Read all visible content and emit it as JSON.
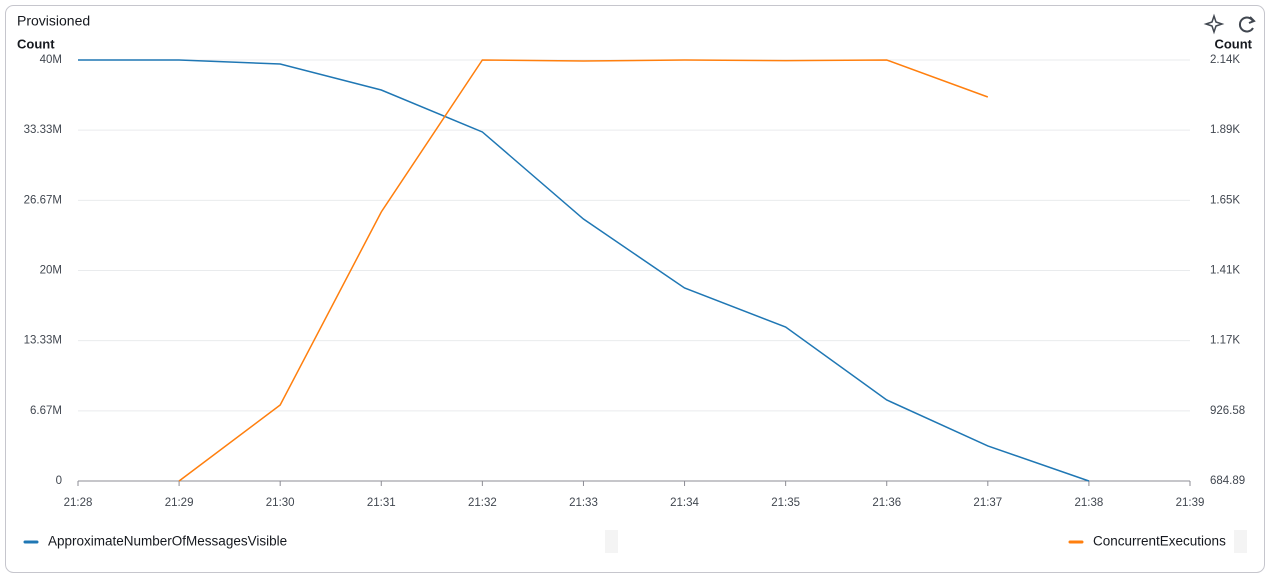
{
  "chart_data": {
    "type": "line",
    "title": "Provisioned",
    "y_label": "Count",
    "y2_label": "Count",
    "categories": [
      "21:28",
      "21:29",
      "21:30",
      "21:31",
      "21:32",
      "21:33",
      "21:34",
      "21:35",
      "21:36",
      "21:37",
      "21:38",
      "21:39"
    ],
    "series": [
      {
        "name": "ApproximateNumberOfMessagesVisible",
        "color": "#1f77b4",
        "axis": "y",
        "values": [
          40000000,
          40000000,
          39620000,
          37150000,
          33160000,
          24890000,
          18340000,
          14630000,
          7700000,
          3330000,
          0,
          null
        ]
      },
      {
        "name": "ConcurrentExecutions",
        "color": "#ff7f0e",
        "axis": "y2",
        "values": [
          null,
          684.89,
          946.7,
          1611.5,
          2135.03,
          2131.6,
          2135.03,
          2133,
          2135.03,
          2007.6,
          null,
          null
        ]
      }
    ],
    "ylim": [
      0,
      40000000
    ],
    "yticks": [
      0,
      {
        "value": 6666667,
        "label": "6.67M"
      },
      {
        "value": 13333333,
        "label": "13.33M"
      },
      {
        "value": 20000000,
        "label": "20M"
      },
      {
        "value": 26666667,
        "label": "26.67M"
      },
      {
        "value": 33333333,
        "label": "33.33M"
      },
      {
        "value": 40000000,
        "label": "40M"
      }
    ],
    "y2lim": [
      684.89,
      2135.03
    ],
    "y2ticks": [
      684.89,
      926.58,
      {
        "value": 1168.27,
        "label": "1.17K"
      },
      {
        "value": 1409.96,
        "label": "1.41K"
      },
      {
        "value": 1651.65,
        "label": "1.65K"
      },
      {
        "value": 1893.34,
        "label": "1.89K"
      },
      {
        "value": 2135.03,
        "label": "2.14K"
      }
    ],
    "grid": true
  }
}
